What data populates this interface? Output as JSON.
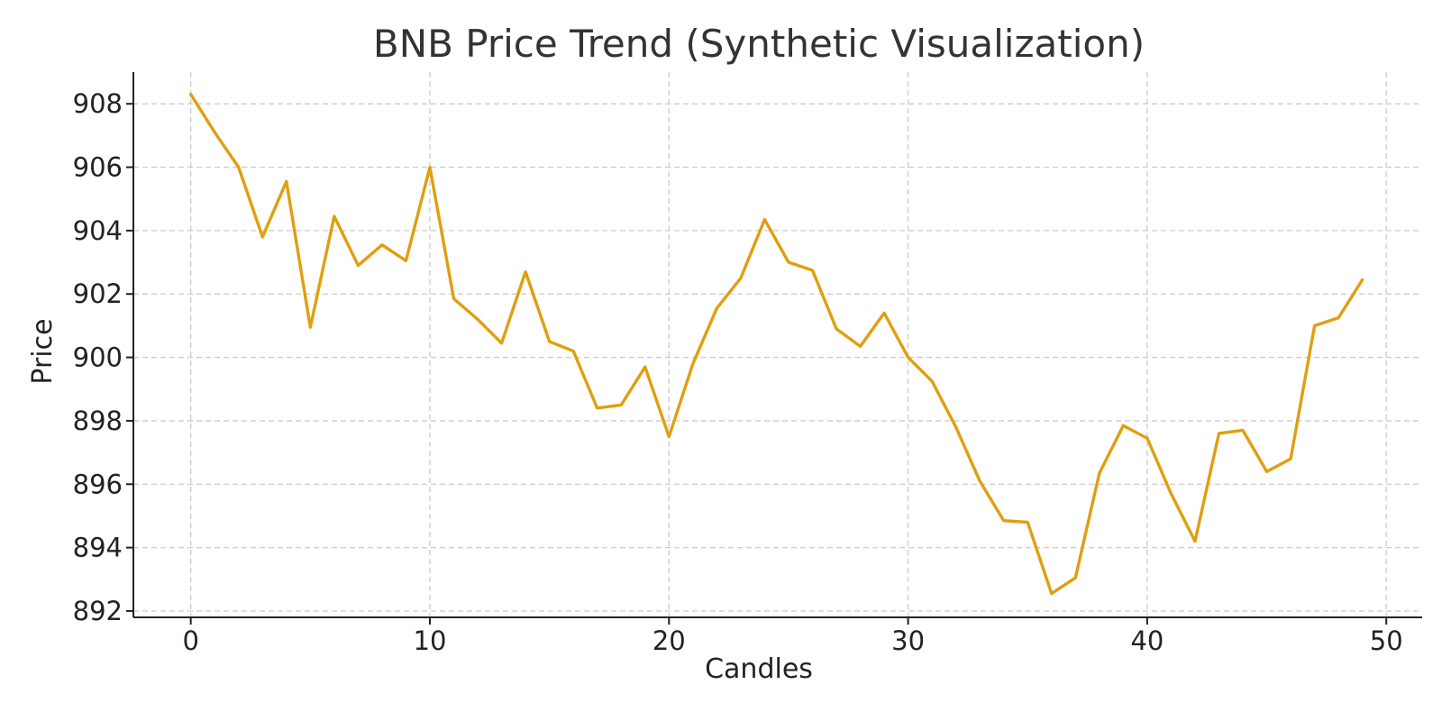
{
  "chart_data": {
    "type": "line",
    "title": "BNB Price Trend (Synthetic Visualization)",
    "xlabel": "Candles",
    "ylabel": "Price",
    "xlim": [
      -2.4,
      51.5
    ],
    "ylim": [
      891.8,
      909.0
    ],
    "xticks": [
      0,
      10,
      20,
      30,
      40,
      50
    ],
    "yticks": [
      892,
      894,
      896,
      898,
      900,
      902,
      904,
      906,
      908
    ],
    "grid": true,
    "legend": "none",
    "series": [
      {
        "color": "#e09f0f",
        "x": [
          0,
          1,
          2,
          3,
          4,
          5,
          6,
          7,
          8,
          9,
          10,
          11,
          12,
          13,
          14,
          15,
          16,
          17,
          18,
          19,
          20,
          21,
          22,
          23,
          24,
          25,
          26,
          27,
          28,
          29,
          30,
          31,
          32,
          33,
          34,
          35,
          36,
          37,
          38,
          39,
          40,
          41,
          42,
          43,
          44,
          45,
          46,
          47,
          48,
          49
        ],
        "values": [
          908.3,
          907.1,
          906.0,
          903.8,
          905.55,
          900.95,
          904.45,
          902.9,
          903.55,
          903.05,
          906.0,
          901.85,
          901.2,
          900.45,
          902.7,
          900.5,
          900.2,
          898.4,
          898.5,
          899.7,
          897.5,
          899.8,
          901.55,
          902.5,
          904.35,
          903.0,
          902.75,
          900.9,
          900.35,
          901.4,
          900.0,
          899.25,
          897.8,
          896.1,
          894.85,
          894.8,
          892.55,
          893.05,
          896.35,
          897.85,
          897.45,
          895.7,
          894.2,
          897.6,
          897.7,
          896.4,
          896.8,
          901.0,
          901.25,
          902.45
        ]
      }
    ]
  }
}
